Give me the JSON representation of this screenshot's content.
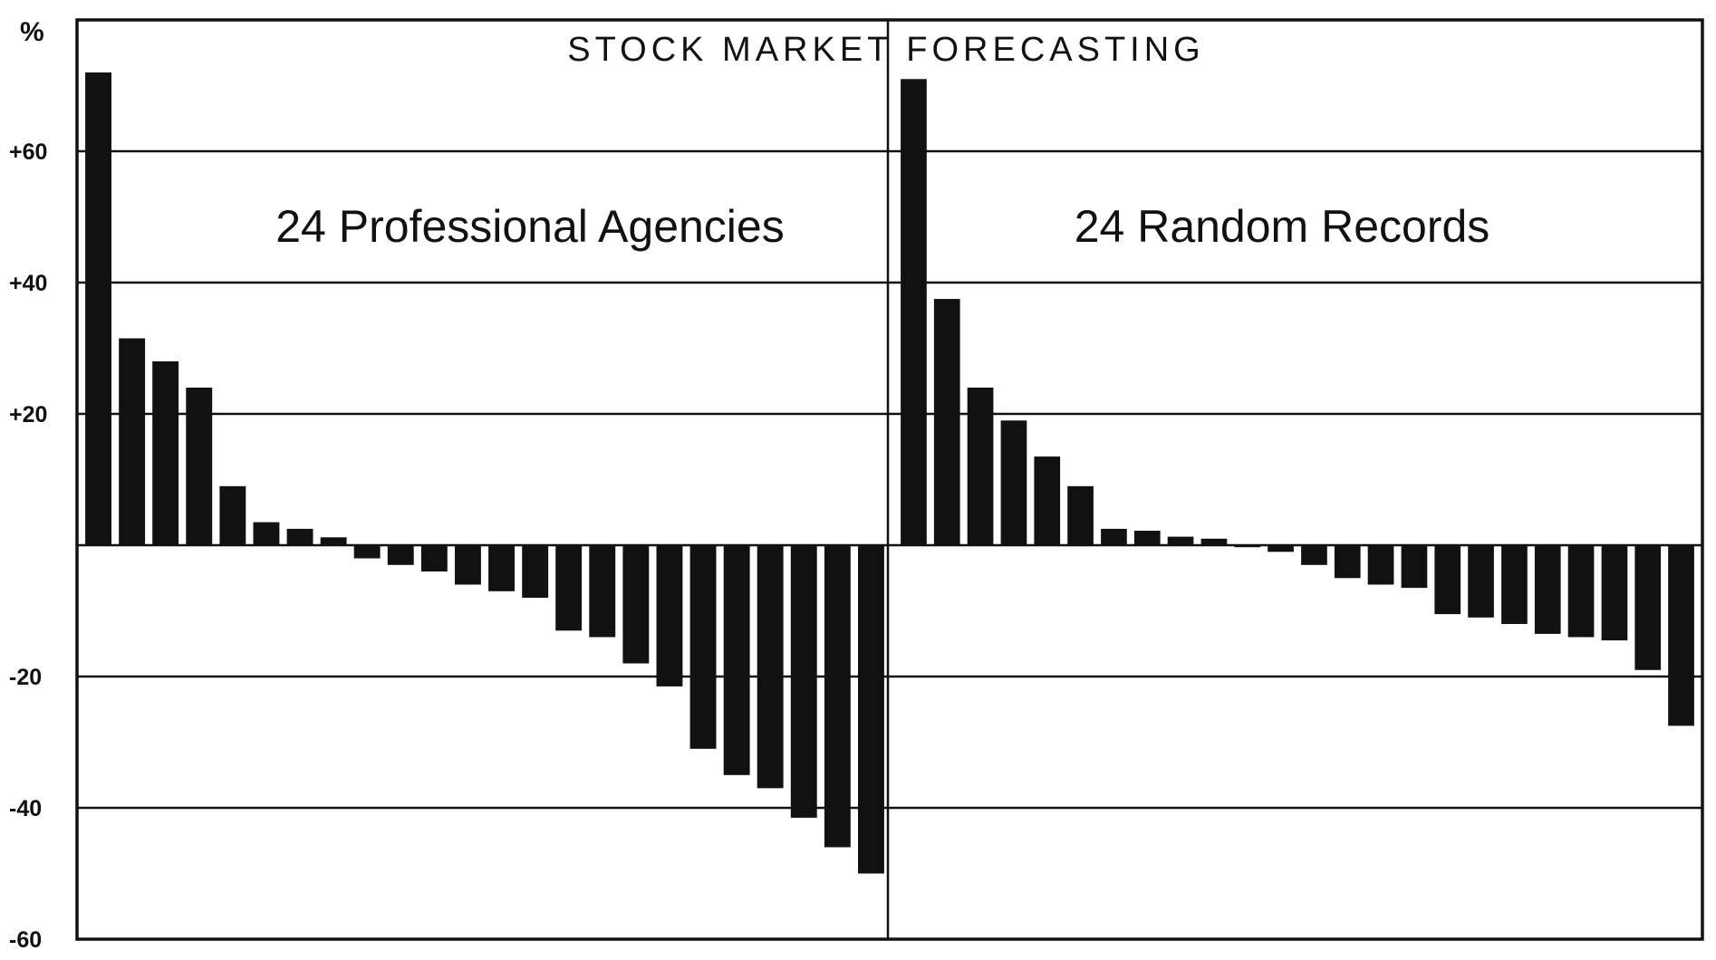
{
  "chart_data": {
    "type": "bar",
    "title": "STOCK MARKET FORECASTING",
    "ylabel": "%",
    "ylim": [
      -60,
      80
    ],
    "y_ticks": [
      {
        "value": 60,
        "label": "+60"
      },
      {
        "value": 40,
        "label": "+40"
      },
      {
        "value": 20,
        "label": "+20"
      },
      {
        "value": -20,
        "label": "-20"
      },
      {
        "value": -40,
        "label": "-40"
      },
      {
        "value": -60,
        "label": "-60"
      }
    ],
    "grid": true,
    "panels": [
      {
        "label": "24 Professional Agencies",
        "values": [
          72,
          31.5,
          28,
          24,
          9,
          3.5,
          2.5,
          1.2,
          -2,
          -3,
          -4,
          -6,
          -7,
          -8,
          -13,
          -14,
          -18,
          -21.5,
          -31,
          -35,
          -37,
          -41.5,
          -46,
          -50
        ]
      },
      {
        "label": "24 Random Records",
        "values": [
          71,
          37.5,
          24,
          19,
          13.5,
          9,
          2.5,
          2.2,
          1.3,
          1,
          -0.3,
          -1,
          -3,
          -5,
          -6,
          -6.5,
          -10.5,
          -11,
          -12,
          -13.5,
          -14,
          -14.5,
          -19,
          -27.5
        ]
      }
    ]
  }
}
